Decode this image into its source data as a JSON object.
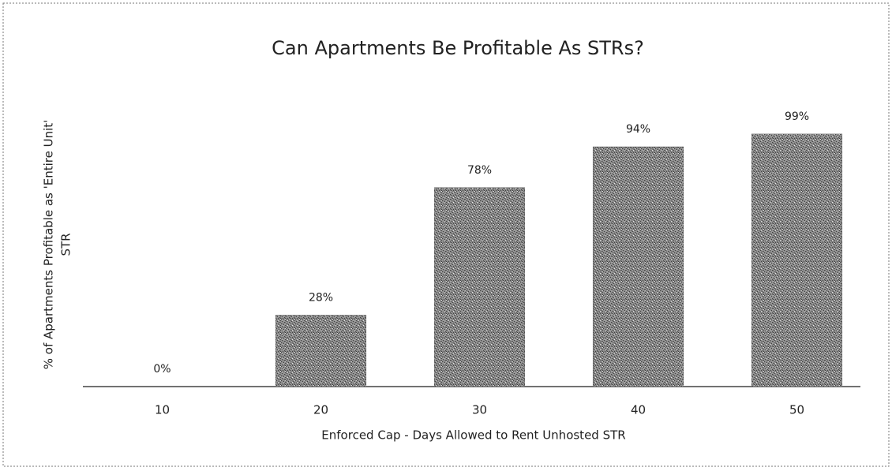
{
  "chart_data": {
    "type": "bar",
    "title": "Can Apartments Be Profitable As STRs?",
    "x_label": "Enforced Cap - Days Allowed to Rent Unhosted STR",
    "y_label": [
      "% of Apartments Profitable as 'Entire Unit'",
      "STR"
    ],
    "categories": [
      "10",
      "20",
      "30",
      "40",
      "50"
    ],
    "values": [
      0,
      28,
      78,
      94,
      99
    ],
    "value_labels": [
      "0%",
      "28%",
      "78%",
      "94%",
      "99%"
    ],
    "color": "#8c8c8c",
    "ylim": [
      0,
      120
    ]
  }
}
